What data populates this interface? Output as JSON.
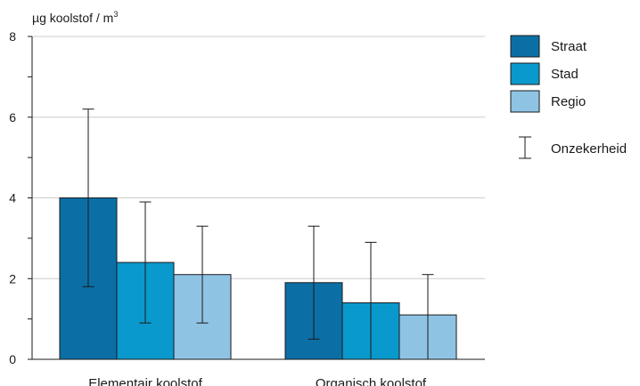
{
  "chart_data": {
    "type": "bar",
    "ylabel": "µg koolstof / m",
    "ylabel_superscript": "3",
    "ylim": [
      0,
      8
    ],
    "yticks": [
      "0",
      "2",
      "4",
      "6",
      "8"
    ],
    "categories": [
      "Elementair koolstof",
      "Organisch koolstof"
    ],
    "series": [
      {
        "name": "Straat",
        "color": "#0b6fa5",
        "values": [
          4.0,
          1.9
        ],
        "err_low": [
          1.8,
          0.5
        ],
        "err_high": [
          6.2,
          3.3
        ]
      },
      {
        "name": "Stad",
        "color": "#0a99cc",
        "values": [
          2.4,
          1.4
        ],
        "err_low": [
          0.9,
          0.0
        ],
        "err_high": [
          3.9,
          2.9
        ]
      },
      {
        "name": "Regio",
        "color": "#8fc3e4",
        "values": [
          2.1,
          1.1
        ],
        "err_low": [
          0.9,
          0.0
        ],
        "err_high": [
          3.3,
          2.1
        ]
      }
    ],
    "uncertainty_label": "Onzekerheid",
    "grid": true,
    "legend_position": "right"
  }
}
